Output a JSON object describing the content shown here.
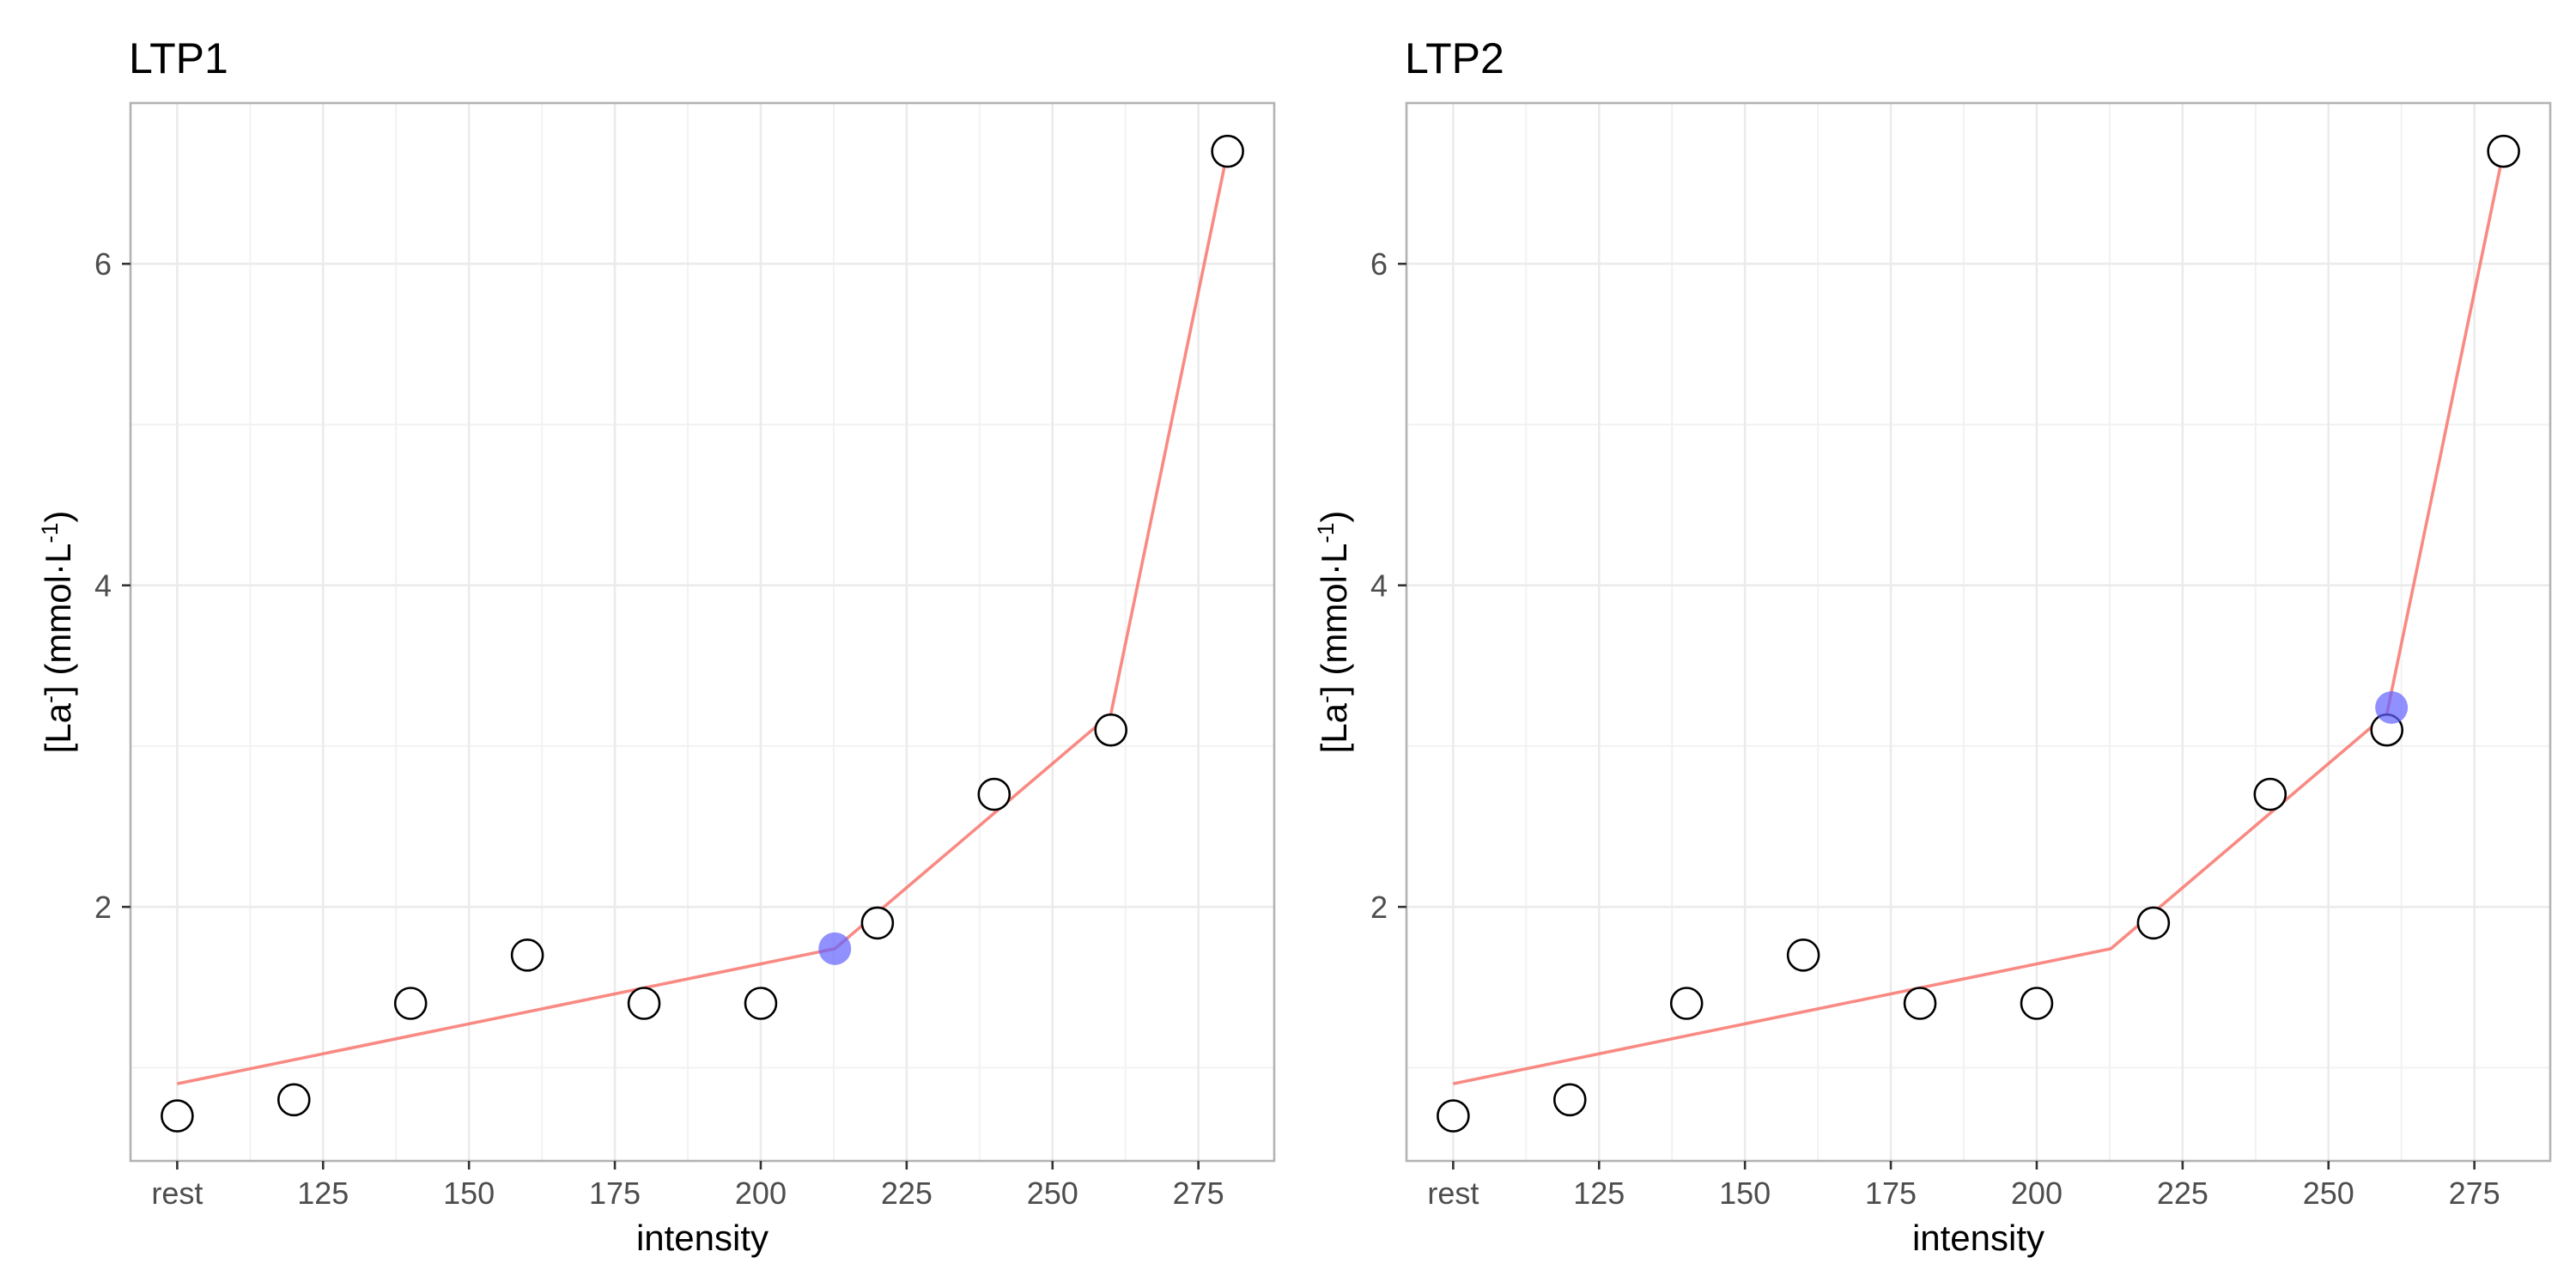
{
  "chart_data": [
    {
      "type": "line",
      "title": "LTP1",
      "xlabel": "intensity",
      "ylabel": "[La⁻] (mmol·L⁻¹)",
      "ylabel_parts": {
        "pre": "[La",
        "sup1": "-",
        "mid": "] (mmol·L",
        "sup2": "-1",
        "post": ")"
      },
      "xlim": [
        92,
        288
      ],
      "ylim": [
        0.42,
        7.0
      ],
      "x_ticks": [
        {
          "value": 100,
          "label": "rest"
        },
        {
          "value": 125,
          "label": "125"
        },
        {
          "value": 150,
          "label": "150"
        },
        {
          "value": 175,
          "label": "175"
        },
        {
          "value": 200,
          "label": "200"
        },
        {
          "value": 225,
          "label": "225"
        },
        {
          "value": 250,
          "label": "250"
        },
        {
          "value": 275,
          "label": "275"
        }
      ],
      "y_ticks": [
        2,
        4,
        6
      ],
      "grid": true,
      "series": [
        {
          "kind": "points",
          "x": [
            100,
            120,
            140,
            160,
            180,
            200,
            220,
            240,
            260,
            280
          ],
          "y": [
            0.7,
            0.8,
            1.4,
            1.7,
            1.4,
            1.4,
            1.9,
            2.7,
            3.1,
            6.7
          ]
        },
        {
          "kind": "fit",
          "color": "#f8766d",
          "x": [
            100,
            212.7,
            260,
            280
          ],
          "y": [
            0.9,
            1.74,
            3.2,
            6.7
          ]
        },
        {
          "kind": "threshold",
          "color": "#6161ff",
          "x": [
            212.7
          ],
          "y": [
            1.74
          ]
        }
      ]
    },
    {
      "type": "line",
      "title": "LTP2",
      "xlabel": "intensity",
      "ylabel": "[La⁻] (mmol·L⁻¹)",
      "ylabel_parts": {
        "pre": "[La",
        "sup1": "-",
        "mid": "] (mmol·L",
        "sup2": "-1",
        "post": ")"
      },
      "xlim": [
        92,
        288
      ],
      "ylim": [
        0.42,
        7.0
      ],
      "x_ticks": [
        {
          "value": 100,
          "label": "rest"
        },
        {
          "value": 125,
          "label": "125"
        },
        {
          "value": 150,
          "label": "150"
        },
        {
          "value": 175,
          "label": "175"
        },
        {
          "value": 200,
          "label": "200"
        },
        {
          "value": 225,
          "label": "225"
        },
        {
          "value": 250,
          "label": "250"
        },
        {
          "value": 275,
          "label": "275"
        }
      ],
      "y_ticks": [
        2,
        4,
        6
      ],
      "grid": true,
      "series": [
        {
          "kind": "points",
          "x": [
            100,
            120,
            140,
            160,
            180,
            200,
            220,
            240,
            260,
            280
          ],
          "y": [
            0.7,
            0.8,
            1.4,
            1.7,
            1.4,
            1.4,
            1.9,
            2.7,
            3.1,
            6.7
          ]
        },
        {
          "kind": "fit",
          "color": "#f8766d",
          "x": [
            100,
            212.7,
            260,
            280
          ],
          "y": [
            0.9,
            1.74,
            3.2,
            6.7
          ]
        },
        {
          "kind": "threshold",
          "color": "#6161ff",
          "x": [
            260.8
          ],
          "y": [
            3.24
          ]
        }
      ]
    }
  ]
}
